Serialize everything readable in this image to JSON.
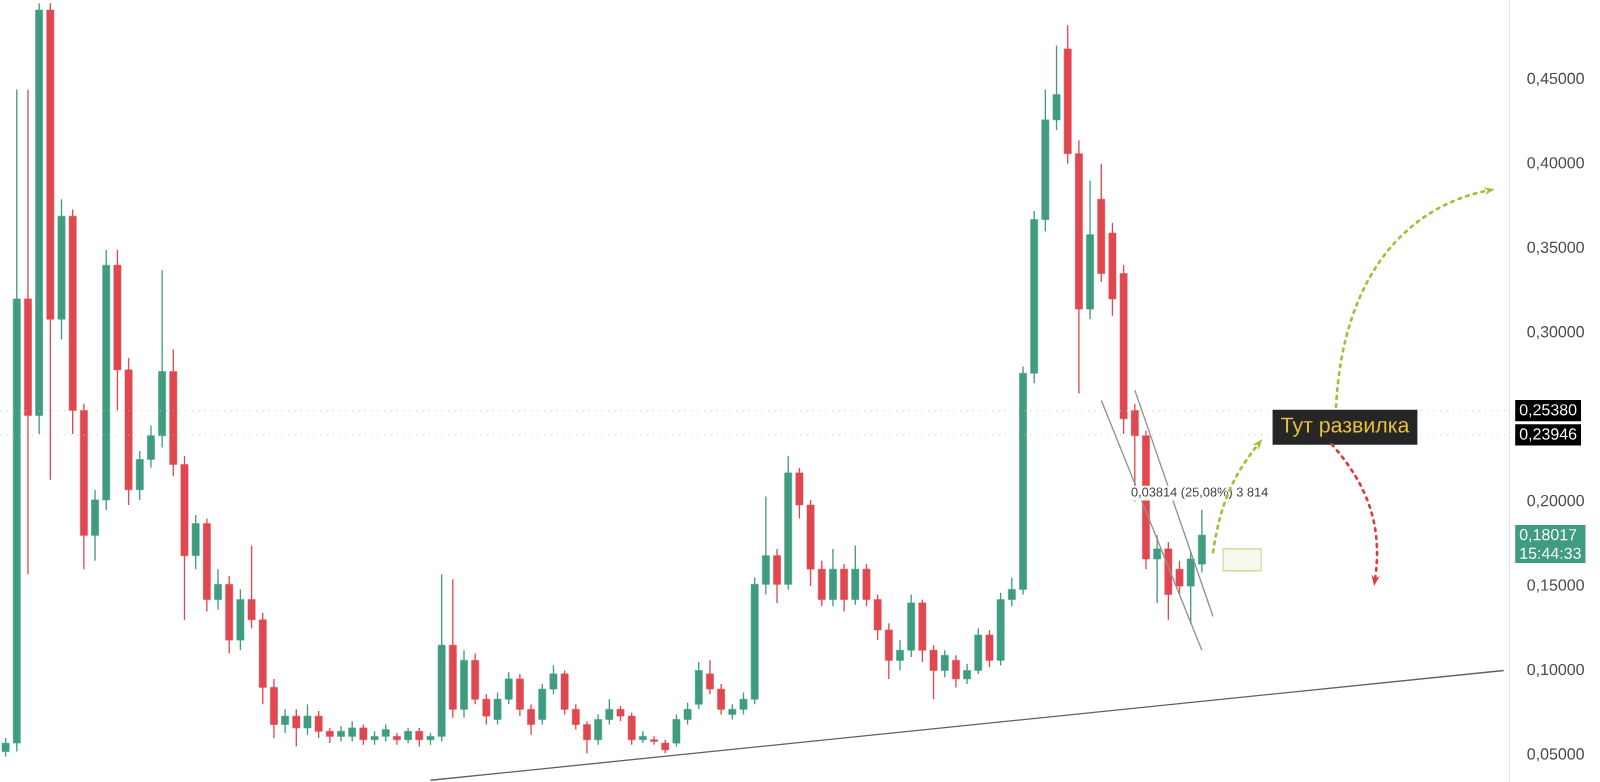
{
  "chart_data": {
    "type": "candlestick",
    "categories": [
      null,
      null,
      null,
      null,
      null,
      null,
      null,
      null,
      null,
      null,
      null,
      null,
      null,
      null,
      null,
      null,
      null,
      null,
      null,
      null,
      null,
      null,
      null,
      null,
      null,
      null,
      null,
      null,
      null,
      null,
      null,
      null,
      null,
      null,
      null,
      null,
      null,
      null,
      null,
      null,
      null,
      null,
      null,
      null,
      null,
      null,
      null,
      null,
      null,
      null,
      null,
      null,
      null,
      null,
      null,
      null,
      null,
      null,
      null,
      null,
      null,
      null,
      null,
      null,
      null,
      null,
      null,
      null,
      null,
      null,
      null,
      null,
      null,
      null,
      null,
      null,
      null,
      null,
      null,
      null,
      null,
      null,
      null,
      null,
      null,
      null,
      null,
      null,
      null,
      null,
      null,
      null,
      null,
      null,
      null,
      null,
      null,
      null,
      null,
      null,
      null,
      null,
      null,
      null,
      null,
      null,
      null,
      null,
      null,
      null,
      null,
      null,
      null,
      null,
      null,
      null,
      null,
      null,
      null,
      null,
      null,
      null,
      null,
      null,
      null,
      null,
      null,
      null,
      null,
      null,
      null,
      null,
      null,
      null,
      null
    ],
    "ohlc": [
      [
        0.052,
        0.06,
        0.049,
        0.057
      ],
      [
        0.057,
        0.444,
        0.052,
        0.32
      ],
      [
        0.32,
        0.444,
        0.157,
        0.251
      ],
      [
        0.251,
        0.495,
        0.24,
        0.491
      ],
      [
        0.491,
        0.495,
        0.213,
        0.308
      ],
      [
        0.308,
        0.379,
        0.296,
        0.369
      ],
      [
        0.369,
        0.373,
        0.24,
        0.254
      ],
      [
        0.254,
        0.258,
        0.16,
        0.18
      ],
      [
        0.18,
        0.207,
        0.165,
        0.201
      ],
      [
        0.201,
        0.349,
        0.195,
        0.34
      ],
      [
        0.34,
        0.349,
        0.254,
        0.278
      ],
      [
        0.278,
        0.285,
        0.198,
        0.207
      ],
      [
        0.207,
        0.23,
        0.201,
        0.225
      ],
      [
        0.225,
        0.245,
        0.22,
        0.239
      ],
      [
        0.239,
        0.337,
        0.232,
        0.277
      ],
      [
        0.277,
        0.29,
        0.215,
        0.222
      ],
      [
        0.222,
        0.227,
        0.13,
        0.168
      ],
      [
        0.168,
        0.192,
        0.16,
        0.187
      ],
      [
        0.187,
        0.19,
        0.135,
        0.142
      ],
      [
        0.142,
        0.16,
        0.136,
        0.151
      ],
      [
        0.151,
        0.156,
        0.11,
        0.118
      ],
      [
        0.118,
        0.148,
        0.112,
        0.142
      ],
      [
        0.142,
        0.174,
        0.125,
        0.13
      ],
      [
        0.13,
        0.134,
        0.08,
        0.09
      ],
      [
        0.09,
        0.095,
        0.06,
        0.068
      ],
      [
        0.068,
        0.077,
        0.063,
        0.073
      ],
      [
        0.073,
        0.077,
        0.055,
        0.066
      ],
      [
        0.066,
        0.08,
        0.062,
        0.073
      ],
      [
        0.073,
        0.076,
        0.06,
        0.064
      ],
      [
        0.064,
        0.066,
        0.057,
        0.061
      ],
      [
        0.061,
        0.067,
        0.058,
        0.064
      ],
      [
        0.061,
        0.07,
        0.058,
        0.066
      ],
      [
        0.066,
        0.068,
        0.056,
        0.059
      ],
      [
        0.059,
        0.064,
        0.056,
        0.061
      ],
      [
        0.061,
        0.068,
        0.058,
        0.065
      ],
      [
        0.061,
        0.063,
        0.056,
        0.059
      ],
      [
        0.059,
        0.066,
        0.057,
        0.064
      ],
      [
        0.064,
        0.066,
        0.055,
        0.059
      ],
      [
        0.059,
        0.063,
        0.056,
        0.061
      ],
      [
        0.061,
        0.157,
        0.058,
        0.115
      ],
      [
        0.115,
        0.154,
        0.072,
        0.077
      ],
      [
        0.077,
        0.112,
        0.072,
        0.106
      ],
      [
        0.106,
        0.11,
        0.08,
        0.083
      ],
      [
        0.083,
        0.086,
        0.068,
        0.073
      ],
      [
        0.071,
        0.087,
        0.068,
        0.083
      ],
      [
        0.083,
        0.099,
        0.08,
        0.095
      ],
      [
        0.095,
        0.098,
        0.073,
        0.077
      ],
      [
        0.077,
        0.08,
        0.062,
        0.068
      ],
      [
        0.071,
        0.092,
        0.068,
        0.089
      ],
      [
        0.089,
        0.103,
        0.086,
        0.098
      ],
      [
        0.098,
        0.1,
        0.074,
        0.077
      ],
      [
        0.077,
        0.08,
        0.065,
        0.068
      ],
      [
        0.068,
        0.07,
        0.051,
        0.059
      ],
      [
        0.059,
        0.074,
        0.056,
        0.071
      ],
      [
        0.071,
        0.083,
        0.068,
        0.077
      ],
      [
        0.077,
        0.079,
        0.07,
        0.073
      ],
      [
        0.073,
        0.075,
        0.056,
        0.059
      ],
      [
        0.059,
        0.064,
        0.057,
        0.061
      ],
      [
        0.059,
        0.061,
        0.056,
        0.058
      ],
      [
        0.057,
        0.059,
        0.051,
        0.053
      ],
      [
        0.057,
        0.074,
        0.055,
        0.071
      ],
      [
        0.071,
        0.081,
        0.068,
        0.077
      ],
      [
        0.08,
        0.105,
        0.077,
        0.1
      ],
      [
        0.098,
        0.106,
        0.086,
        0.089
      ],
      [
        0.089,
        0.092,
        0.074,
        0.077
      ],
      [
        0.074,
        0.08,
        0.071,
        0.077
      ],
      [
        0.077,
        0.087,
        0.074,
        0.083
      ],
      [
        0.083,
        0.155,
        0.08,
        0.151
      ],
      [
        0.151,
        0.203,
        0.145,
        0.168
      ],
      [
        0.168,
        0.172,
        0.14,
        0.151
      ],
      [
        0.151,
        0.227,
        0.148,
        0.217
      ],
      [
        0.217,
        0.22,
        0.19,
        0.198
      ],
      [
        0.198,
        0.201,
        0.15,
        0.16
      ],
      [
        0.16,
        0.165,
        0.138,
        0.142
      ],
      [
        0.142,
        0.172,
        0.138,
        0.16
      ],
      [
        0.16,
        0.163,
        0.135,
        0.142
      ],
      [
        0.142,
        0.174,
        0.139,
        0.16
      ],
      [
        0.16,
        0.163,
        0.138,
        0.142
      ],
      [
        0.142,
        0.145,
        0.118,
        0.124
      ],
      [
        0.124,
        0.128,
        0.095,
        0.106
      ],
      [
        0.106,
        0.118,
        0.1,
        0.112
      ],
      [
        0.112,
        0.145,
        0.108,
        0.14
      ],
      [
        0.14,
        0.142,
        0.105,
        0.112
      ],
      [
        0.112,
        0.115,
        0.083,
        0.1
      ],
      [
        0.1,
        0.112,
        0.096,
        0.109
      ],
      [
        0.106,
        0.109,
        0.09,
        0.095
      ],
      [
        0.095,
        0.104,
        0.092,
        0.1
      ],
      [
        0.1,
        0.125,
        0.098,
        0.121
      ],
      [
        0.121,
        0.124,
        0.102,
        0.106
      ],
      [
        0.106,
        0.146,
        0.103,
        0.142
      ],
      [
        0.142,
        0.155,
        0.138,
        0.148
      ],
      [
        0.148,
        0.28,
        0.145,
        0.276
      ],
      [
        0.276,
        0.372,
        0.27,
        0.367
      ],
      [
        0.367,
        0.444,
        0.36,
        0.426
      ],
      [
        0.426,
        0.47,
        0.42,
        0.441
      ],
      [
        0.468,
        0.482,
        0.4,
        0.406
      ],
      [
        0.406,
        0.414,
        0.264,
        0.314
      ],
      [
        0.314,
        0.39,
        0.308,
        0.358
      ],
      [
        0.379,
        0.4,
        0.33,
        0.335
      ],
      [
        0.359,
        0.365,
        0.31,
        0.32
      ],
      [
        0.335,
        0.34,
        0.24,
        0.249
      ],
      [
        0.254,
        0.258,
        0.2,
        0.239
      ],
      [
        0.239,
        0.242,
        0.16,
        0.166
      ],
      [
        0.166,
        0.18,
        0.14,
        0.172
      ],
      [
        0.172,
        0.176,
        0.13,
        0.145
      ],
      [
        0.16,
        0.165,
        0.145,
        0.15
      ],
      [
        0.15,
        0.17,
        0.128,
        0.166
      ],
      [
        0.163,
        0.195,
        0.158,
        0.18017
      ],
      null,
      null,
      null,
      null,
      null,
      null,
      null,
      null,
      null,
      null,
      null,
      null,
      null,
      null,
      null,
      null,
      null,
      null,
      null,
      null,
      null,
      null,
      null,
      null,
      null,
      null,
      null
    ],
    "colors": [
      "#3f9c80",
      "#3f9c80",
      "#e04850",
      "#3f9c80",
      "#e04850",
      "#3f9c80",
      "#e04850",
      "#e04850",
      "#3f9c80",
      "#3f9c80",
      "#e04850",
      "#e04850",
      "#3f9c80",
      "#3f9c80",
      "#3f9c80",
      "#e04850",
      "#e04850",
      "#3f9c80",
      "#e04850",
      "#3f9c80",
      "#e04850",
      "#3f9c80",
      "#e04850",
      "#e04850",
      "#e04850",
      "#3f9c80",
      "#e04850",
      "#3f9c80",
      "#e04850",
      "#e04850",
      "#3f9c80",
      "#3f9c80",
      "#e04850",
      "#3f9c80",
      "#3f9c80",
      "#e04850",
      "#3f9c80",
      "#e04850",
      "#3f9c80",
      "#3f9c80",
      "#e04850",
      "#3f9c80",
      "#e04850",
      "#e04850",
      "#3f9c80",
      "#3f9c80",
      "#e04850",
      "#e04850",
      "#3f9c80",
      "#3f9c80",
      "#e04850",
      "#e04850",
      "#e04850",
      "#3f9c80",
      "#3f9c80",
      "#e04850",
      "#e04850",
      "#3f9c80",
      "#e04850",
      "#e04850",
      "#3f9c80",
      "#3f9c80",
      "#3f9c80",
      "#e04850",
      "#e04850",
      "#3f9c80",
      "#3f9c80",
      "#3f9c80",
      "#3f9c80",
      "#e04850",
      "#3f9c80",
      "#e04850",
      "#e04850",
      "#e04850",
      "#3f9c80",
      "#e04850",
      "#3f9c80",
      "#e04850",
      "#e04850",
      "#e04850",
      "#3f9c80",
      "#3f9c80",
      "#e04850",
      "#e04850",
      "#3f9c80",
      "#e04850",
      "#3f9c80",
      "#3f9c80",
      "#e04850",
      "#3f9c80",
      "#3f9c80",
      "#3f9c80",
      "#3f9c80",
      "#3f9c80",
      "#3f9c80",
      "#e04850",
      "#e04850",
      "#3f9c80",
      "#e04850",
      "#e04850",
      "#e04850",
      "#e04850",
      "#e04850",
      "#3f9c80",
      "#e04850",
      "#e04850",
      "#3f9c80",
      "#3f9c80",
      null,
      null,
      null,
      null,
      null,
      null,
      null,
      null,
      null,
      null,
      null,
      null,
      null,
      null,
      null,
      null,
      null,
      null,
      null,
      null,
      null,
      null,
      null,
      null,
      null,
      null,
      null
    ],
    "series": [
      {
        "type": "line",
        "color": "#606060",
        "values": [
          null,
          null,
          null,
          null,
          null,
          null,
          null,
          null,
          null,
          null,
          null,
          null,
          null,
          null,
          null,
          null,
          null,
          null,
          null,
          null,
          null,
          null,
          null,
          null,
          null,
          null,
          null,
          null,
          null,
          null,
          null,
          null,
          null,
          null,
          null,
          null,
          null,
          null,
          0.035,
          null,
          null,
          null,
          null,
          null,
          null,
          null,
          null,
          null,
          null,
          null,
          null,
          null,
          null,
          null,
          null,
          null,
          null,
          null,
          null,
          null,
          null,
          null,
          null,
          null,
          null,
          null,
          null,
          null,
          null,
          null,
          null,
          null,
          null,
          null,
          null,
          null,
          null,
          null,
          null,
          null,
          null,
          null,
          null,
          null,
          null,
          null,
          null,
          null,
          null,
          null,
          null,
          null,
          null,
          null,
          null,
          null,
          null,
          null,
          null,
          null,
          null,
          null,
          null,
          null,
          null,
          null,
          null,
          null,
          null,
          null,
          null,
          null,
          null,
          null,
          null,
          null,
          null,
          null,
          null,
          null,
          null,
          null,
          null,
          null,
          null,
          null,
          null,
          null,
          null,
          null,
          null,
          null,
          null,
          null,
          0.1
        ]
      },
      {
        "type": "line",
        "color": "#909090",
        "values": [
          null,
          null,
          null,
          null,
          null,
          null,
          null,
          null,
          null,
          null,
          null,
          null,
          null,
          null,
          null,
          null,
          null,
          null,
          null,
          null,
          null,
          null,
          null,
          null,
          null,
          null,
          null,
          null,
          null,
          null,
          null,
          null,
          null,
          null,
          null,
          null,
          null,
          null,
          null,
          null,
          null,
          null,
          null,
          null,
          null,
          null,
          null,
          null,
          null,
          null,
          null,
          null,
          null,
          null,
          null,
          null,
          null,
          null,
          null,
          null,
          null,
          null,
          null,
          null,
          null,
          null,
          null,
          null,
          null,
          null,
          null,
          null,
          null,
          null,
          null,
          null,
          null,
          null,
          null,
          null,
          null,
          null,
          null,
          null,
          null,
          null,
          null,
          null,
          null,
          null,
          null,
          null,
          null,
          null,
          null,
          null,
          null,
          null,
          0.26,
          null,
          null,
          null,
          null,
          null,
          null,
          null,
          null,
          0.112,
          null,
          null,
          null,
          null,
          null,
          null,
          null,
          null,
          null,
          null,
          null,
          null,
          null,
          null,
          null,
          null,
          null,
          null,
          null,
          null,
          null,
          null,
          null,
          null,
          null,
          null,
          null
        ]
      },
      {
        "type": "line",
        "color": "#909090",
        "values": [
          null,
          null,
          null,
          null,
          null,
          null,
          null,
          null,
          null,
          null,
          null,
          null,
          null,
          null,
          null,
          null,
          null,
          null,
          null,
          null,
          null,
          null,
          null,
          null,
          null,
          null,
          null,
          null,
          null,
          null,
          null,
          null,
          null,
          null,
          null,
          null,
          null,
          null,
          null,
          null,
          null,
          null,
          null,
          null,
          null,
          null,
          null,
          null,
          null,
          null,
          null,
          null,
          null,
          null,
          null,
          null,
          null,
          null,
          null,
          null,
          null,
          null,
          null,
          null,
          null,
          null,
          null,
          null,
          null,
          null,
          null,
          null,
          null,
          null,
          null,
          null,
          null,
          null,
          null,
          null,
          null,
          null,
          null,
          null,
          null,
          null,
          null,
          null,
          null,
          null,
          null,
          null,
          null,
          null,
          null,
          null,
          null,
          null,
          null,
          null,
          null,
          0.266,
          null,
          null,
          null,
          null,
          null,
          null,
          0.132,
          null,
          null,
          null,
          null,
          null,
          null,
          null,
          null,
          null,
          null,
          null,
          null,
          null,
          null,
          null,
          null,
          null,
          null,
          null,
          null,
          null,
          null,
          null,
          null,
          null,
          null
        ]
      }
    ],
    "ylim": [
      0.034,
      0.497
    ],
    "yticks": [
      {
        "value": 0.05,
        "label": "0,05000"
      },
      {
        "value": 0.1,
        "label": "0,10000"
      },
      {
        "value": 0.15,
        "label": "0,15000"
      },
      {
        "value": 0.2,
        "label": "0,20000"
      },
      {
        "value": 0.3,
        "label": "0,30000"
      },
      {
        "value": 0.35,
        "label": "0,35000"
      },
      {
        "value": 0.4,
        "label": "0,40000"
      },
      {
        "value": 0.45,
        "label": "0,45000"
      }
    ],
    "tick_labels": "y",
    "ref_lines": [
      {
        "axis": "y",
        "value": 0.2538,
        "label": "0,25380",
        "color": "#c8c8c8",
        "line_style": "dotted"
      },
      {
        "axis": "y",
        "value": 0.23946,
        "label": "0,23946",
        "color": "#c8c8c8",
        "line_style": "dotted"
      }
    ],
    "annotations": [
      "Тут развилка",
      "0,03814 (25,08%) 3 814",
      "0,18017",
      "15:44:33"
    ],
    "grid": false
  }
}
